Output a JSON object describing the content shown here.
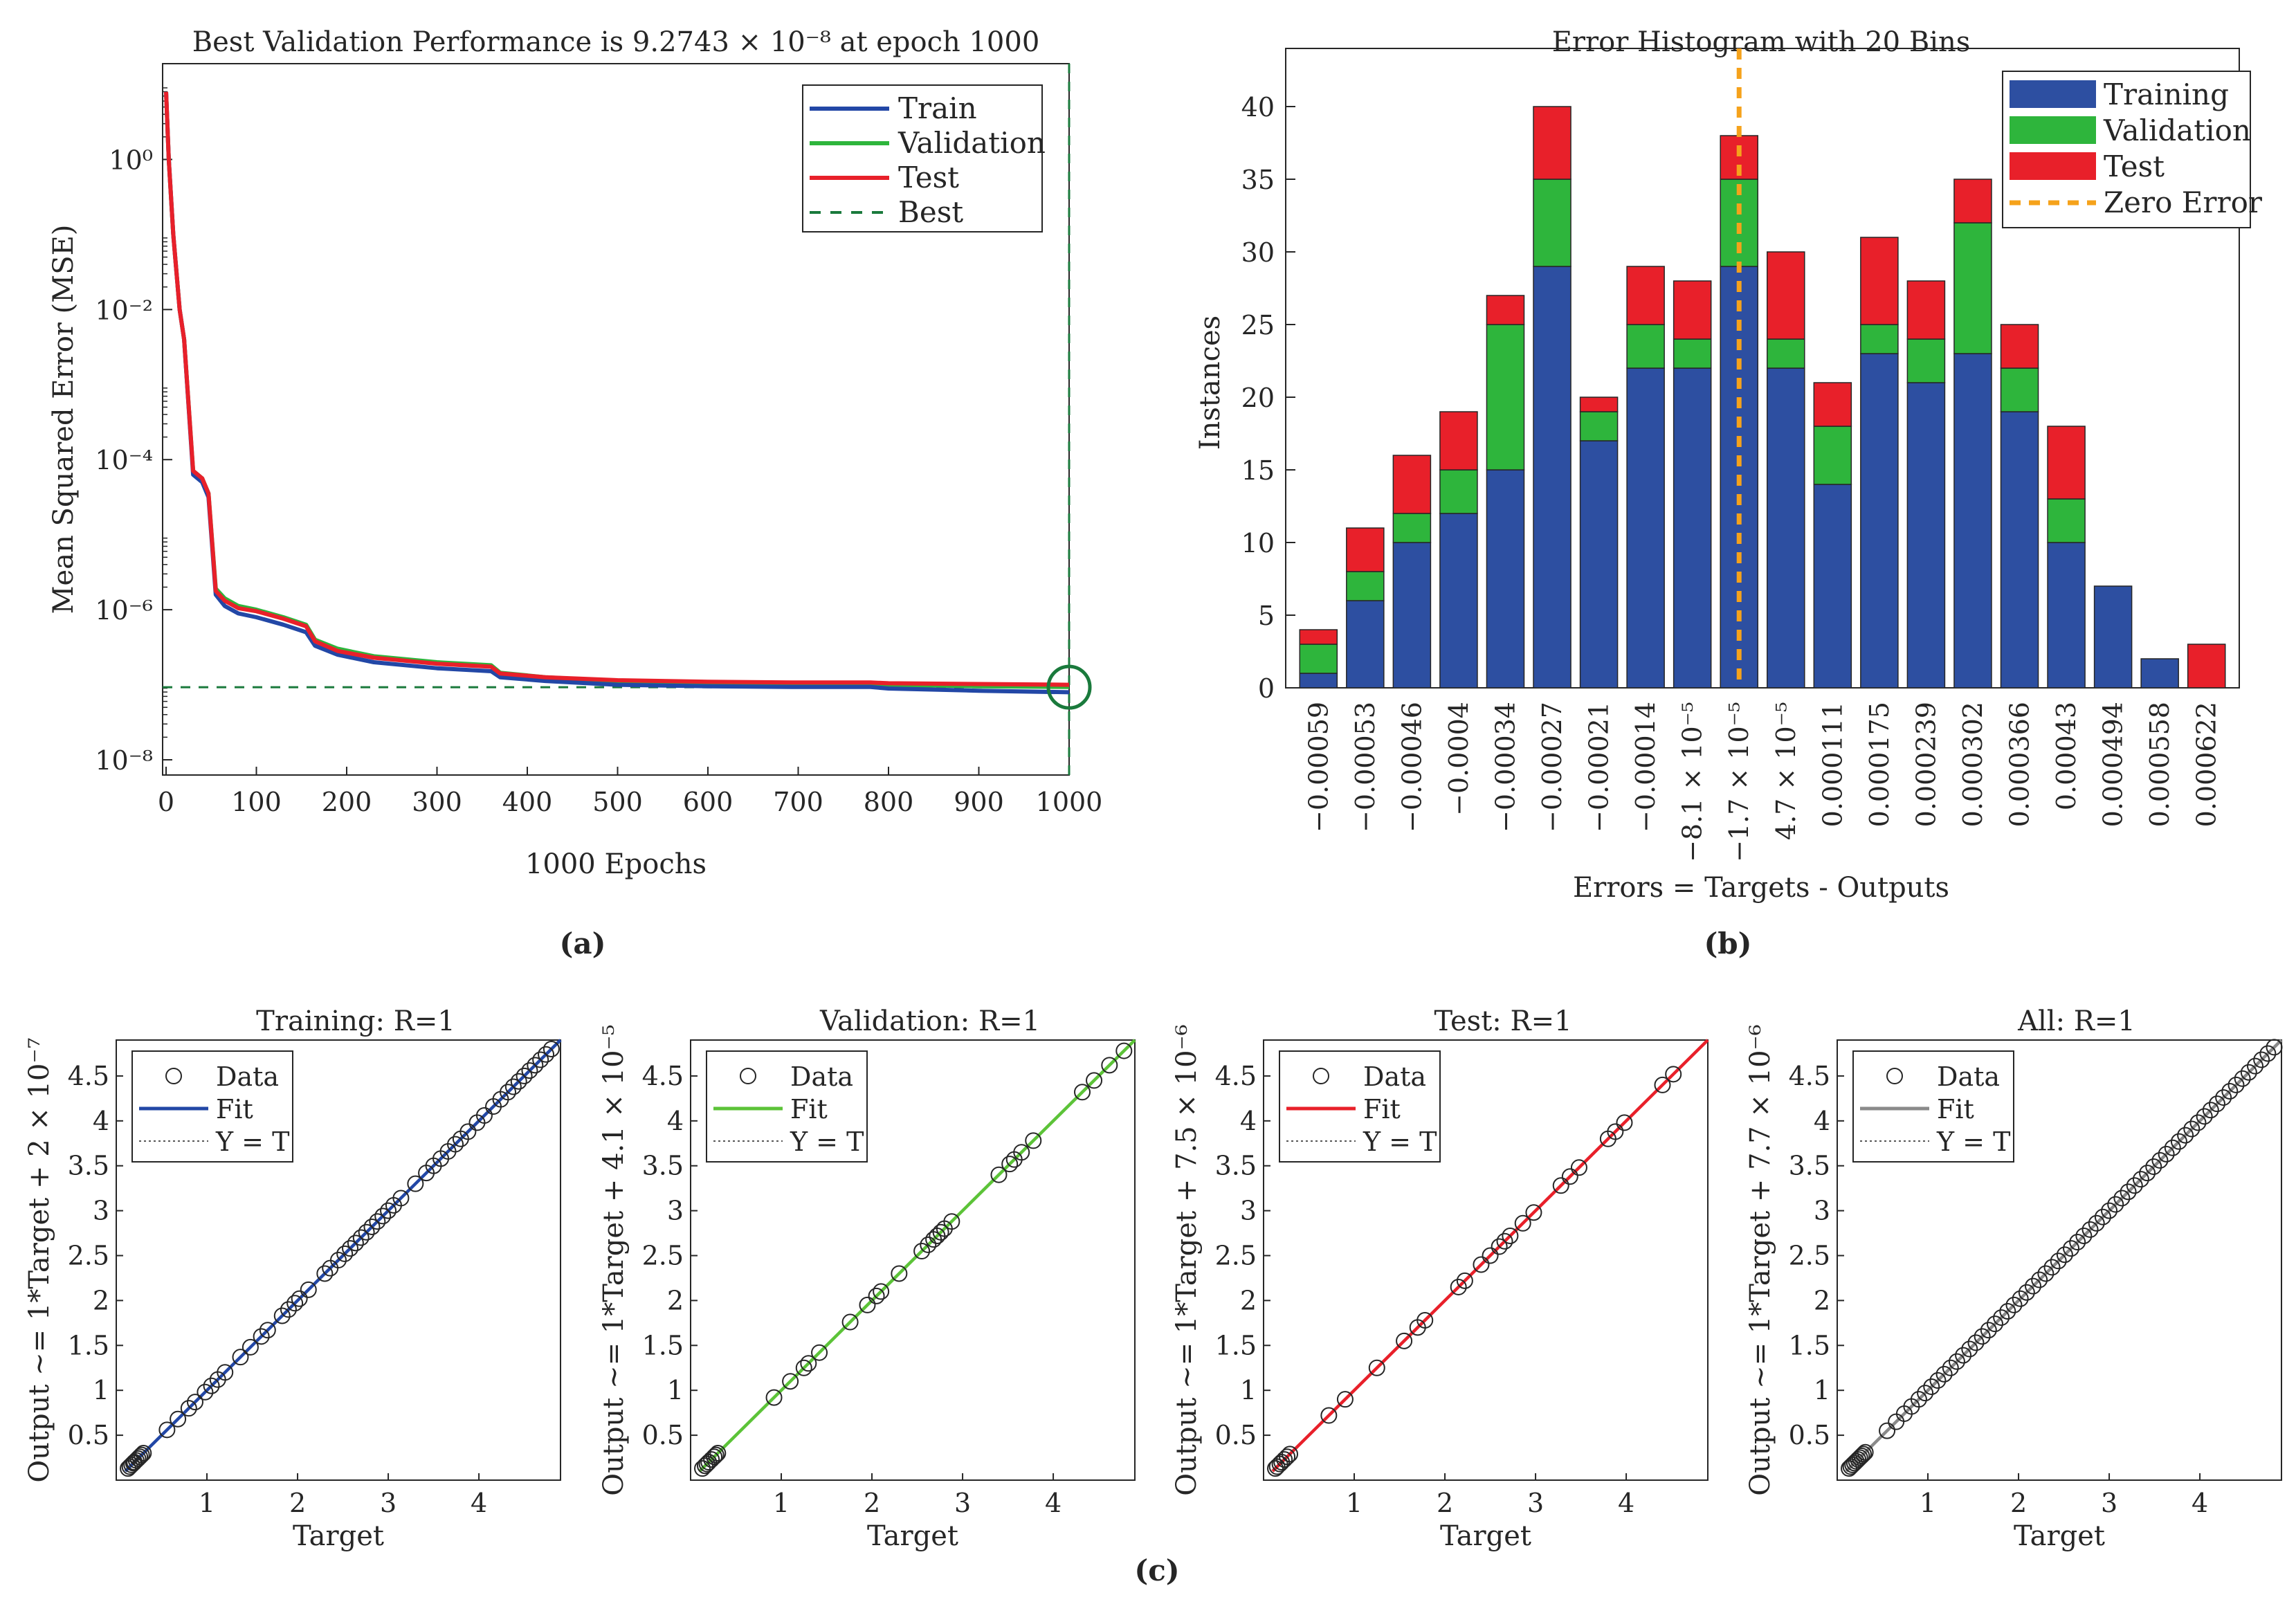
{
  "labels": {
    "a": "(a)",
    "b": "(b)",
    "c": "(c)"
  },
  "colors": {
    "train": "#2247a6",
    "validation": "#2eb53c",
    "test": "#e8202a",
    "best": "#1a7a3c",
    "zero": "#f5a21b",
    "all": "#8a8a8a",
    "bar_blue": "#2d4fa1",
    "bar_green": "#2eb53c",
    "bar_red": "#e8202a"
  },
  "chart_data": [
    {
      "id": "perf",
      "type": "line",
      "title": "Best Validation Performance is 9.2743 × 10⁻⁸ at epoch 1000",
      "xlabel": "1000 Epochs",
      "ylabel": "Mean Squared Error  (MSE)",
      "yscale": "log",
      "xlim": [
        0,
        1000
      ],
      "ylim_log10": [
        -8,
        1
      ],
      "xticks": [
        "0",
        "100",
        "200",
        "300",
        "400",
        "500",
        "600",
        "700",
        "800",
        "900",
        "1000"
      ],
      "yticks": [
        {
          "exp": 0,
          "label": "10⁰"
        },
        {
          "exp": -2,
          "label": "10⁻²"
        },
        {
          "exp": -4,
          "label": "10⁻⁴"
        },
        {
          "exp": -6,
          "label": "10⁻⁶"
        },
        {
          "exp": -8,
          "label": "10⁻⁸"
        }
      ],
      "legend": [
        "Train",
        "Validation",
        "Test",
        "Best"
      ],
      "legend_position": "top-right",
      "best_epoch": 1000,
      "best_value": 9.2743e-08,
      "epochs": [
        0,
        3,
        8,
        15,
        20,
        30,
        40,
        47,
        55,
        65,
        80,
        100,
        130,
        155,
        165,
        190,
        230,
        300,
        360,
        370,
        420,
        500,
        600,
        700,
        780,
        800,
        900,
        1000
      ],
      "series": [
        {
          "name": "Train",
          "log10_mse": [
            0.9,
            0.0,
            -1.0,
            -2.0,
            -2.4,
            -4.2,
            -4.3,
            -4.5,
            -5.8,
            -5.95,
            -6.05,
            -6.1,
            -6.2,
            -6.3,
            -6.48,
            -6.6,
            -6.7,
            -6.78,
            -6.82,
            -6.9,
            -6.95,
            -7.0,
            -7.02,
            -7.03,
            -7.03,
            -7.05,
            -7.08,
            -7.1
          ]
        },
        {
          "name": "Validation",
          "log10_mse": [
            0.9,
            0.0,
            -1.0,
            -2.0,
            -2.4,
            -4.15,
            -4.25,
            -4.45,
            -5.72,
            -5.85,
            -5.95,
            -6.0,
            -6.1,
            -6.2,
            -6.4,
            -6.52,
            -6.62,
            -6.7,
            -6.74,
            -6.84,
            -6.9,
            -6.95,
            -6.97,
            -6.98,
            -6.98,
            -7.0,
            -7.02,
            -7.03
          ]
        },
        {
          "name": "Test",
          "log10_mse": [
            0.9,
            0.0,
            -1.0,
            -2.0,
            -2.4,
            -4.15,
            -4.25,
            -4.45,
            -5.75,
            -5.88,
            -5.98,
            -6.02,
            -6.12,
            -6.22,
            -6.42,
            -6.55,
            -6.64,
            -6.72,
            -6.76,
            -6.85,
            -6.9,
            -6.94,
            -6.96,
            -6.97,
            -6.97,
            -6.98,
            -6.99,
            -7.0
          ]
        }
      ]
    },
    {
      "id": "hist",
      "type": "bar",
      "stacked": true,
      "title": "Error Histogram with 20 Bins",
      "xlabel": "Errors = Targets - Outputs",
      "ylabel": "Instances",
      "ylim": [
        0,
        44
      ],
      "yticks": [
        "0",
        "5",
        "10",
        "15",
        "20",
        "25",
        "30",
        "35",
        "40"
      ],
      "categories": [
        "−0.00059",
        "−0.00053",
        "−0.00046",
        "−0.0004",
        "−0.00034",
        "−0.00027",
        "−0.00021",
        "−0.00014",
        "−8.1 × 10⁻⁵",
        "−1.7 × 10⁻⁵",
        "4.7 × 10⁻⁵",
        "0.000111",
        "0.000175",
        "0.000239",
        "0.000302",
        "0.000366",
        "0.00043",
        "0.000494",
        "0.000558",
        "0.000622"
      ],
      "series": [
        {
          "name": "Training",
          "values": [
            1,
            6,
            10,
            12,
            15,
            29,
            17,
            22,
            22,
            29,
            22,
            14,
            23,
            21,
            23,
            19,
            10,
            7,
            2,
            0
          ]
        },
        {
          "name": "Validation",
          "values": [
            2,
            2,
            2,
            3,
            10,
            6,
            2,
            3,
            2,
            6,
            2,
            4,
            2,
            3,
            9,
            3,
            3,
            0,
            0,
            0
          ]
        },
        {
          "name": "Test",
          "values": [
            1,
            3,
            4,
            4,
            2,
            5,
            1,
            4,
            4,
            3,
            6,
            3,
            6,
            4,
            3,
            3,
            5,
            0,
            0,
            3
          ]
        }
      ],
      "zero_error_bin": 9.5,
      "legend": [
        "Training",
        "Validation",
        "Test",
        "Zero Error"
      ],
      "legend_position": "top-right"
    },
    {
      "id": "reg-train",
      "type": "scatter",
      "title": "Training: R=1",
      "xlabel": "Target",
      "ylabel": "Output ~= 1*Target + 2 × 10⁻⁷",
      "xlim": [
        0.0,
        4.9
      ],
      "ylim": [
        0.0,
        4.9
      ],
      "xticks": [
        "1",
        "2",
        "3",
        "4"
      ],
      "yticks": [
        "0.5",
        "1",
        "1.5",
        "2",
        "2.5",
        "3",
        "3.5",
        "4",
        "4.5"
      ],
      "fit_color": "#2247a6",
      "legend": [
        "Data",
        "Fit",
        "Y = T"
      ],
      "points": [
        0.13,
        0.15,
        0.17,
        0.19,
        0.2,
        0.22,
        0.24,
        0.26,
        0.28,
        0.3,
        0.56,
        0.68,
        0.8,
        0.87,
        0.98,
        1.05,
        1.12,
        1.2,
        1.37,
        1.48,
        1.6,
        1.67,
        1.83,
        1.9,
        1.97,
        2.02,
        2.12,
        2.3,
        2.36,
        2.45,
        2.52,
        2.58,
        2.64,
        2.7,
        2.76,
        2.82,
        2.88,
        2.94,
        3.0,
        3.06,
        3.14,
        3.3,
        3.42,
        3.5,
        3.58,
        3.66,
        3.74,
        3.8,
        3.88,
        3.98,
        4.06,
        4.16,
        4.24,
        4.32,
        4.38,
        4.44,
        4.5,
        4.56,
        4.62,
        4.68,
        4.74,
        4.8
      ]
    },
    {
      "id": "reg-val",
      "type": "scatter",
      "title": "Validation: R=1",
      "xlabel": "Target",
      "ylabel": "Output ~= 1*Target + 4.1 × 10⁻⁵",
      "xlim": [
        0.0,
        4.9
      ],
      "ylim": [
        0.0,
        4.9
      ],
      "xticks": [
        "1",
        "2",
        "3",
        "4"
      ],
      "yticks": [
        "0.5",
        "1",
        "1.5",
        "2",
        "2.5",
        "3",
        "3.5",
        "4",
        "4.5"
      ],
      "fit_color": "#5cc338",
      "legend": [
        "Data",
        "Fit",
        "Y = T"
      ],
      "points": [
        0.13,
        0.16,
        0.18,
        0.2,
        0.23,
        0.26,
        0.28,
        0.3,
        0.92,
        1.1,
        1.25,
        1.3,
        1.42,
        1.76,
        1.95,
        2.05,
        2.1,
        2.3,
        2.55,
        2.62,
        2.68,
        2.72,
        2.76,
        2.8,
        2.88,
        3.4,
        3.52,
        3.57,
        3.65,
        3.78,
        4.32,
        4.45,
        4.62,
        4.78
      ]
    },
    {
      "id": "reg-test",
      "type": "scatter",
      "title": "Test: R=1",
      "xlabel": "Target",
      "ylabel": "Output ~= 1*Target + 7.5 × 10⁻⁶",
      "xlim": [
        0.0,
        4.9
      ],
      "ylim": [
        0.0,
        4.9
      ],
      "xticks": [
        "1",
        "2",
        "3",
        "4"
      ],
      "yticks": [
        "0.5",
        "1",
        "1.5",
        "2",
        "2.5",
        "3",
        "3.5",
        "4",
        "4.5"
      ],
      "fit_color": "#e8202a",
      "legend": [
        "Data",
        "Fit",
        "Y = T"
      ],
      "points": [
        0.13,
        0.15,
        0.18,
        0.2,
        0.23,
        0.26,
        0.29,
        0.72,
        0.9,
        1.25,
        1.55,
        1.7,
        1.78,
        2.15,
        2.22,
        2.4,
        2.5,
        2.6,
        2.66,
        2.72,
        2.86,
        2.98,
        3.28,
        3.38,
        3.48,
        3.8,
        3.88,
        3.98,
        4.4,
        4.52
      ]
    },
    {
      "id": "reg-all",
      "type": "scatter",
      "title": "All: R=1",
      "xlabel": "Target",
      "ylabel": "Output ~= 1*Target + 7.7 × 10⁻⁶",
      "xlim": [
        0.0,
        4.9
      ],
      "ylim": [
        0.0,
        4.9
      ],
      "xticks": [
        "1",
        "2",
        "3",
        "4"
      ],
      "yticks": [
        "0.5",
        "1",
        "1.5",
        "2",
        "2.5",
        "3",
        "3.5",
        "4",
        "4.5"
      ],
      "fit_color": "#8a8a8a",
      "legend": [
        "Data",
        "Fit",
        "Y = T"
      ],
      "points": [
        0.13,
        0.15,
        0.17,
        0.19,
        0.21,
        0.23,
        0.25,
        0.27,
        0.29,
        0.31,
        0.55,
        0.65,
        0.74,
        0.82,
        0.9,
        0.97,
        1.04,
        1.11,
        1.18,
        1.25,
        1.32,
        1.39,
        1.46,
        1.53,
        1.6,
        1.67,
        1.74,
        1.81,
        1.88,
        1.95,
        2.02,
        2.09,
        2.16,
        2.23,
        2.3,
        2.37,
        2.44,
        2.51,
        2.58,
        2.65,
        2.72,
        2.79,
        2.86,
        2.93,
        3.0,
        3.07,
        3.14,
        3.21,
        3.28,
        3.35,
        3.42,
        3.49,
        3.56,
        3.63,
        3.7,
        3.77,
        3.84,
        3.91,
        3.98,
        4.05,
        4.12,
        4.19,
        4.26,
        4.33,
        4.4,
        4.47,
        4.54,
        4.61,
        4.68,
        4.75,
        4.82
      ]
    }
  ]
}
